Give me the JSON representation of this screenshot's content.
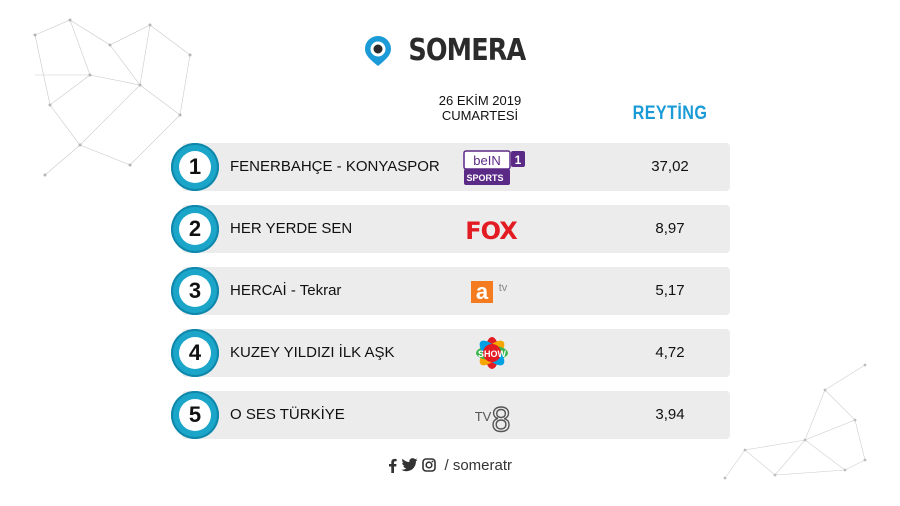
{
  "brand": {
    "name": "SOMERA",
    "logo_icon": "location-pin-icon",
    "accent": "#1a9bd7"
  },
  "date": {
    "line1": "26 EKİM 2019",
    "line2": "CUMARTESİ"
  },
  "rating_header": "REYTİNG",
  "rows": [
    {
      "rank": "1",
      "show": "FENERBAHÇE - KONYASPOR",
      "channel": "beIN SPORTS 1",
      "rating": "37,02"
    },
    {
      "rank": "2",
      "show": "HER YERDE SEN",
      "channel": "FOX",
      "rating": "8,97"
    },
    {
      "rank": "3",
      "show": "HERCAİ - Tekrar",
      "channel": "atv",
      "rating": "5,17"
    },
    {
      "rank": "4",
      "show": "KUZEY YILDIZI İLK AŞK",
      "channel": "SHOW",
      "rating": "4,72"
    },
    {
      "rank": "5",
      "show": "O SES TÜRKİYE",
      "channel": "TV8",
      "rating": "3,94"
    }
  ],
  "channel_logos": {
    "bein_text": "beIN",
    "bein_sub": "SPORTS",
    "bein_num": "1",
    "fox_text": "FOX",
    "atv_a": "a",
    "atv_tv": "tv",
    "show_text": "SHOW",
    "tv8_tv": "TV",
    "tv8_8": "8"
  },
  "footer": {
    "handle": "/ someratr",
    "icons": [
      "facebook-icon",
      "twitter-icon",
      "instagram-icon"
    ]
  }
}
